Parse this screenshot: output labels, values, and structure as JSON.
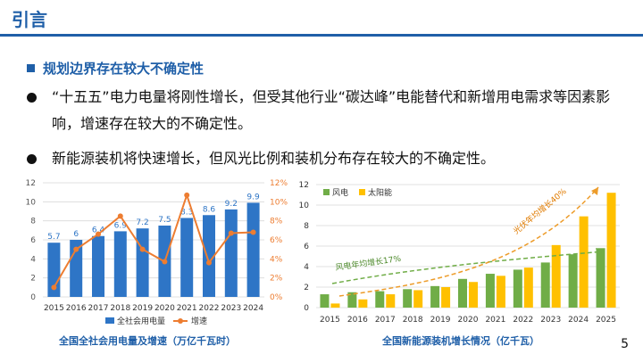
{
  "slide": {
    "title": "引言",
    "section": "规划边界存在较大不确定性",
    "bullets": [
      "“十五五”电力电量将刚性增长，但受其他行业“碳达峰”电能替代和新增用电需求等因素影响，增速存在较大的不确定性。",
      "新能源装机将快速增长，但风光比例和装机分布存在较大的不确定性。"
    ],
    "page_number": "5",
    "colors": {
      "accent": "#1f5fa8",
      "bar_blue": "#2e75c6",
      "line_orange": "#ed7d31",
      "wind_green": "#70ad47",
      "solar_yellow": "#ffc000"
    }
  },
  "chart_data": [
    {
      "type": "bar",
      "caption": "全国全社会用电量及增速（万亿千瓦时）",
      "categories": [
        "2015",
        "2016",
        "2017",
        "2018",
        "2019",
        "2020",
        "2021",
        "2022",
        "2023",
        "2024"
      ],
      "series": [
        {
          "name": "全社会用电量",
          "type": "bar",
          "axis": "left",
          "values": [
            5.7,
            6.0,
            6.4,
            6.9,
            7.2,
            7.5,
            8.3,
            8.6,
            9.2,
            9.9
          ]
        },
        {
          "name": "增速",
          "type": "line",
          "axis": "right",
          "unit": "%",
          "values": [
            1.0,
            5.0,
            6.6,
            8.5,
            5.0,
            3.7,
            10.7,
            3.6,
            6.7,
            6.8
          ]
        }
      ],
      "ylim": [
        0,
        12
      ],
      "yticks": [
        "0",
        "2",
        "4",
        "6",
        "8",
        "10",
        "12"
      ],
      "y2lim": [
        0,
        12
      ],
      "y2ticks": [
        "0%",
        "2%",
        "4%",
        "6%",
        "8%",
        "10%",
        "12%"
      ],
      "legend": "bottom",
      "grid": true
    },
    {
      "type": "bar",
      "caption": "全国新能源装机增长情况（亿千瓦）",
      "categories": [
        "2015",
        "2016",
        "2017",
        "2018",
        "2019",
        "2020",
        "2021",
        "2022",
        "2023",
        "2024",
        "2025"
      ],
      "series": [
        {
          "name": "风电",
          "values": [
            1.3,
            1.5,
            1.6,
            1.8,
            2.1,
            2.8,
            3.3,
            3.7,
            4.4,
            5.2,
            5.8
          ]
        },
        {
          "name": "太阳能",
          "values": [
            0.4,
            0.8,
            1.3,
            1.7,
            2.0,
            2.5,
            3.1,
            3.9,
            6.1,
            8.9,
            11.2
          ]
        }
      ],
      "ylim": [
        0,
        12
      ],
      "yticks": [
        "0",
        "2",
        "4",
        "6",
        "8",
        "10",
        "12"
      ],
      "legend": "top-left",
      "grid": true,
      "annotations": [
        "风电年均增长17%",
        "光伏年均增长40%"
      ]
    }
  ]
}
